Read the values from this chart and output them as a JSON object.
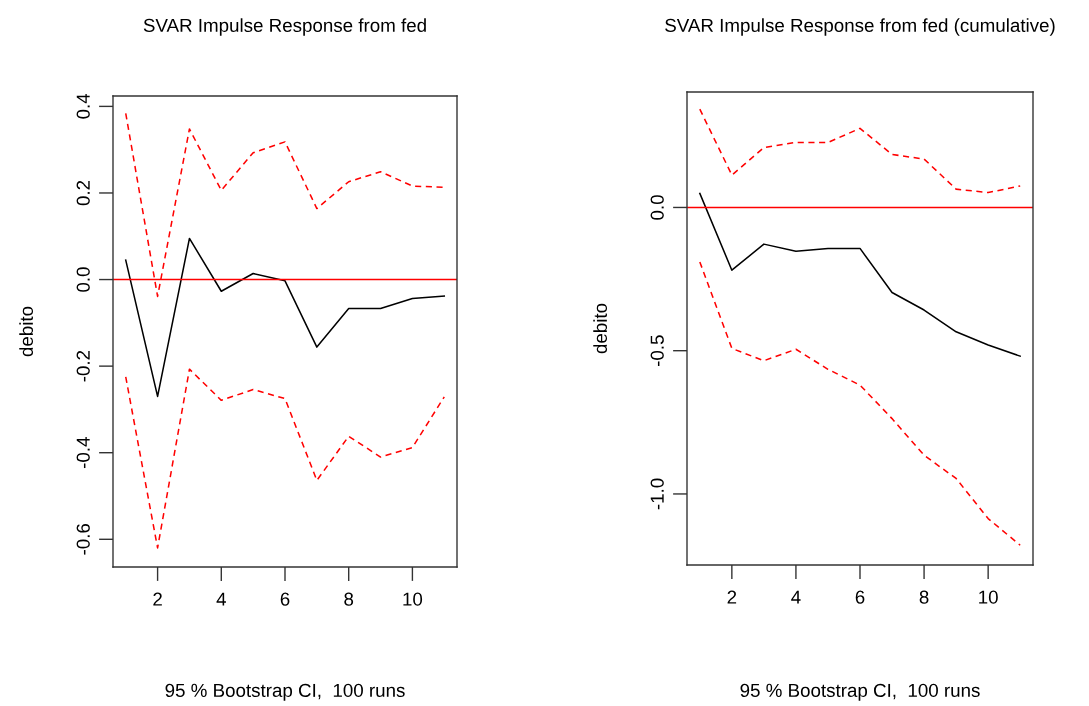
{
  "chart_data": [
    {
      "type": "line",
      "title": "SVAR Impulse Response from fed",
      "xlabel": "95 % Bootstrap CI,  100 runs",
      "ylabel": "debito",
      "x": [
        1,
        2,
        3,
        4,
        5,
        6,
        7,
        8,
        9,
        10,
        11
      ],
      "series": [
        {
          "color": "#000000",
          "line_style": "solid",
          "values": [
            0.045,
            -0.27,
            0.095,
            -0.027,
            0.014,
            -0.003,
            -0.156,
            -0.067,
            -0.067,
            -0.044,
            -0.038
          ]
        },
        {
          "color": "#ff0000",
          "line_style": "dashed",
          "values": [
            0.384,
            -0.039,
            0.348,
            0.206,
            0.293,
            0.318,
            0.164,
            0.226,
            0.249,
            0.216,
            0.213
          ]
        },
        {
          "color": "#ff0000",
          "line_style": "dashed",
          "values": [
            -0.225,
            -0.62,
            -0.207,
            -0.279,
            -0.254,
            -0.275,
            -0.464,
            -0.362,
            -0.41,
            -0.388,
            -0.271
          ]
        }
      ],
      "ref_lines": [
        {
          "axis": "y",
          "value": 0,
          "color": "#ff0000",
          "line_style": "solid"
        }
      ],
      "xlim": [
        0.6,
        11.4
      ],
      "ylim": [
        -0.664,
        0.424
      ],
      "xticks": [
        2,
        4,
        6,
        8,
        10
      ],
      "yticks": [
        {
          "value": -0.6,
          "label": "-0.6"
        },
        {
          "value": -0.4,
          "label": "-0.4"
        },
        {
          "value": -0.2,
          "label": "-0.2"
        },
        {
          "value": 0,
          "label": "0.0"
        },
        {
          "value": 0.2,
          "label": "0.2"
        },
        {
          "value": 0.4,
          "label": "0.4"
        }
      ]
    },
    {
      "type": "line",
      "title": "SVAR Impulse Response from fed (cumulative)",
      "xlabel": "95 % Bootstrap CI,  100 runs",
      "ylabel": "debito",
      "x": [
        1,
        2,
        3,
        4,
        5,
        6,
        7,
        8,
        9,
        10,
        11
      ],
      "series": [
        {
          "color": "#000000",
          "line_style": "solid",
          "values": [
            0.049,
            -0.219,
            -0.128,
            -0.153,
            -0.143,
            -0.143,
            -0.297,
            -0.358,
            -0.434,
            -0.48,
            -0.519
          ]
        },
        {
          "color": "#ff0000",
          "line_style": "dashed",
          "values": [
            0.343,
            0.113,
            0.209,
            0.227,
            0.227,
            0.276,
            0.185,
            0.169,
            0.064,
            0.052,
            0.075
          ]
        },
        {
          "color": "#ff0000",
          "line_style": "dashed",
          "values": [
            -0.19,
            -0.492,
            -0.535,
            -0.495,
            -0.565,
            -0.62,
            -0.737,
            -0.865,
            -0.946,
            -1.086,
            -1.179
          ]
        }
      ],
      "ref_lines": [
        {
          "axis": "y",
          "value": 0,
          "color": "#ff0000",
          "line_style": "solid"
        }
      ],
      "xlim": [
        0.6,
        11.4
      ],
      "ylim": [
        -1.248,
        0.403
      ],
      "xticks": [
        2,
        4,
        6,
        8,
        10
      ],
      "yticks": [
        {
          "value": -1.0,
          "label": "-1.0"
        },
        {
          "value": -0.5,
          "label": "-0.5"
        },
        {
          "value": 0,
          "label": "0.0"
        }
      ]
    }
  ]
}
